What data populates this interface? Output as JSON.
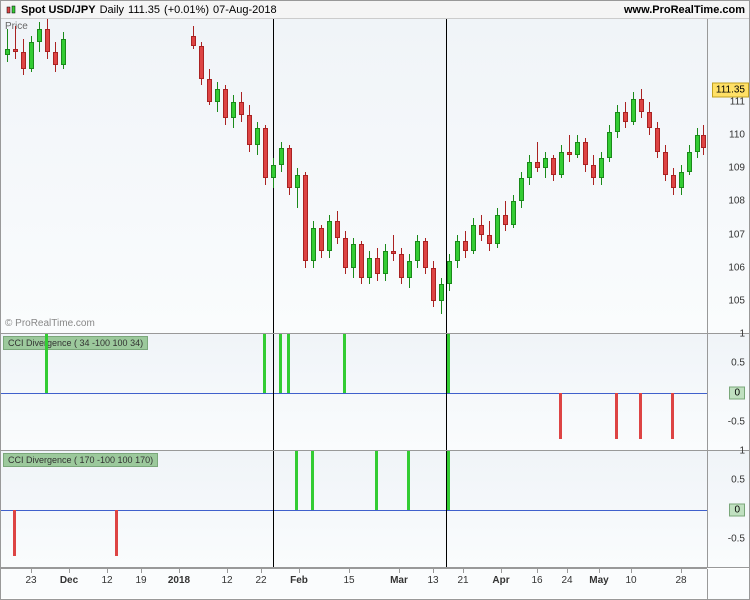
{
  "header": {
    "symbol": "Spot USD/JPY",
    "timeframe": "Daily",
    "price": "111.35",
    "change": "(+0.01%)",
    "date": "07-Aug-2018",
    "site": "www.ProRealTime.com"
  },
  "main": {
    "price_label": "Price",
    "watermark": "© ProRealTime.com",
    "ymin": 104,
    "ymax": 113.5,
    "yticks": [
      105,
      106,
      107,
      108,
      109,
      110,
      111
    ],
    "current_price": 111.35,
    "current_badge": "111.35",
    "vlines_x": [
      272,
      445
    ],
    "candles": [
      {
        "x": 4,
        "o": 112.4,
        "h": 113.2,
        "l": 112.2,
        "c": 112.6,
        "dir": "up"
      },
      {
        "x": 12,
        "o": 112.6,
        "h": 113.3,
        "l": 112.3,
        "c": 112.5,
        "dir": "down"
      },
      {
        "x": 20,
        "o": 112.5,
        "h": 112.9,
        "l": 111.8,
        "c": 112.0,
        "dir": "down"
      },
      {
        "x": 28,
        "o": 112.0,
        "h": 113.0,
        "l": 111.9,
        "c": 112.8,
        "dir": "up"
      },
      {
        "x": 36,
        "o": 112.8,
        "h": 113.4,
        "l": 112.5,
        "c": 113.2,
        "dir": "up"
      },
      {
        "x": 44,
        "o": 113.2,
        "h": 113.5,
        "l": 112.3,
        "c": 112.5,
        "dir": "down"
      },
      {
        "x": 52,
        "o": 112.5,
        "h": 112.8,
        "l": 111.9,
        "c": 112.1,
        "dir": "down"
      },
      {
        "x": 60,
        "o": 112.1,
        "h": 113.1,
        "l": 112.0,
        "c": 112.9,
        "dir": "up"
      },
      {
        "x": 190,
        "o": 113.0,
        "h": 113.3,
        "l": 112.6,
        "c": 112.7,
        "dir": "down"
      },
      {
        "x": 198,
        "o": 112.7,
        "h": 112.8,
        "l": 111.5,
        "c": 111.7,
        "dir": "down"
      },
      {
        "x": 206,
        "o": 111.7,
        "h": 112.0,
        "l": 110.9,
        "c": 111.0,
        "dir": "down"
      },
      {
        "x": 214,
        "o": 111.0,
        "h": 111.6,
        "l": 110.7,
        "c": 111.4,
        "dir": "up"
      },
      {
        "x": 222,
        "o": 111.4,
        "h": 111.5,
        "l": 110.3,
        "c": 110.5,
        "dir": "down"
      },
      {
        "x": 230,
        "o": 110.5,
        "h": 111.2,
        "l": 110.2,
        "c": 111.0,
        "dir": "up"
      },
      {
        "x": 238,
        "o": 111.0,
        "h": 111.3,
        "l": 110.4,
        "c": 110.6,
        "dir": "down"
      },
      {
        "x": 246,
        "o": 110.6,
        "h": 110.9,
        "l": 109.5,
        "c": 109.7,
        "dir": "down"
      },
      {
        "x": 254,
        "o": 109.7,
        "h": 110.4,
        "l": 109.4,
        "c": 110.2,
        "dir": "up"
      },
      {
        "x": 262,
        "o": 110.2,
        "h": 110.3,
        "l": 108.5,
        "c": 108.7,
        "dir": "down"
      },
      {
        "x": 270,
        "o": 108.7,
        "h": 109.3,
        "l": 108.4,
        "c": 109.1,
        "dir": "up"
      },
      {
        "x": 278,
        "o": 109.1,
        "h": 109.8,
        "l": 108.9,
        "c": 109.6,
        "dir": "up"
      },
      {
        "x": 286,
        "o": 109.6,
        "h": 109.7,
        "l": 108.2,
        "c": 108.4,
        "dir": "down"
      },
      {
        "x": 294,
        "o": 108.4,
        "h": 109.0,
        "l": 107.8,
        "c": 108.8,
        "dir": "up"
      },
      {
        "x": 302,
        "o": 108.8,
        "h": 108.9,
        "l": 106.0,
        "c": 106.2,
        "dir": "down"
      },
      {
        "x": 310,
        "o": 106.2,
        "h": 107.4,
        "l": 106.0,
        "c": 107.2,
        "dir": "up"
      },
      {
        "x": 318,
        "o": 107.2,
        "h": 107.3,
        "l": 106.3,
        "c": 106.5,
        "dir": "down"
      },
      {
        "x": 326,
        "o": 106.5,
        "h": 107.6,
        "l": 106.3,
        "c": 107.4,
        "dir": "up"
      },
      {
        "x": 334,
        "o": 107.4,
        "h": 107.7,
        "l": 106.7,
        "c": 106.9,
        "dir": "down"
      },
      {
        "x": 342,
        "o": 106.9,
        "h": 107.1,
        "l": 105.8,
        "c": 106.0,
        "dir": "down"
      },
      {
        "x": 350,
        "o": 106.0,
        "h": 106.9,
        "l": 105.7,
        "c": 106.7,
        "dir": "up"
      },
      {
        "x": 358,
        "o": 106.7,
        "h": 106.8,
        "l": 105.5,
        "c": 105.7,
        "dir": "down"
      },
      {
        "x": 366,
        "o": 105.7,
        "h": 106.5,
        "l": 105.5,
        "c": 106.3,
        "dir": "up"
      },
      {
        "x": 374,
        "o": 106.3,
        "h": 106.6,
        "l": 105.6,
        "c": 105.8,
        "dir": "down"
      },
      {
        "x": 382,
        "o": 105.8,
        "h": 106.7,
        "l": 105.6,
        "c": 106.5,
        "dir": "up"
      },
      {
        "x": 390,
        "o": 106.5,
        "h": 107.0,
        "l": 106.2,
        "c": 106.4,
        "dir": "down"
      },
      {
        "x": 398,
        "o": 106.4,
        "h": 106.6,
        "l": 105.5,
        "c": 105.7,
        "dir": "down"
      },
      {
        "x": 406,
        "o": 105.7,
        "h": 106.4,
        "l": 105.4,
        "c": 106.2,
        "dir": "up"
      },
      {
        "x": 414,
        "o": 106.2,
        "h": 107.0,
        "l": 106.0,
        "c": 106.8,
        "dir": "up"
      },
      {
        "x": 422,
        "o": 106.8,
        "h": 106.9,
        "l": 105.8,
        "c": 106.0,
        "dir": "down"
      },
      {
        "x": 430,
        "o": 106.0,
        "h": 106.2,
        "l": 104.8,
        "c": 105.0,
        "dir": "down"
      },
      {
        "x": 438,
        "o": 105.0,
        "h": 105.7,
        "l": 104.6,
        "c": 105.5,
        "dir": "up"
      },
      {
        "x": 446,
        "o": 105.5,
        "h": 106.4,
        "l": 105.3,
        "c": 106.2,
        "dir": "up"
      },
      {
        "x": 454,
        "o": 106.2,
        "h": 107.0,
        "l": 106.0,
        "c": 106.8,
        "dir": "up"
      },
      {
        "x": 462,
        "o": 106.8,
        "h": 107.1,
        "l": 106.3,
        "c": 106.5,
        "dir": "down"
      },
      {
        "x": 470,
        "o": 106.5,
        "h": 107.5,
        "l": 106.4,
        "c": 107.3,
        "dir": "up"
      },
      {
        "x": 478,
        "o": 107.3,
        "h": 107.6,
        "l": 106.8,
        "c": 107.0,
        "dir": "down"
      },
      {
        "x": 486,
        "o": 107.0,
        "h": 107.4,
        "l": 106.5,
        "c": 106.7,
        "dir": "down"
      },
      {
        "x": 494,
        "o": 106.7,
        "h": 107.8,
        "l": 106.6,
        "c": 107.6,
        "dir": "up"
      },
      {
        "x": 502,
        "o": 107.6,
        "h": 108.0,
        "l": 107.1,
        "c": 107.3,
        "dir": "down"
      },
      {
        "x": 510,
        "o": 107.3,
        "h": 108.2,
        "l": 107.2,
        "c": 108.0,
        "dir": "up"
      },
      {
        "x": 518,
        "o": 108.0,
        "h": 108.9,
        "l": 107.8,
        "c": 108.7,
        "dir": "up"
      },
      {
        "x": 526,
        "o": 108.7,
        "h": 109.4,
        "l": 108.5,
        "c": 109.2,
        "dir": "up"
      },
      {
        "x": 534,
        "o": 109.2,
        "h": 109.8,
        "l": 108.9,
        "c": 109.0,
        "dir": "down"
      },
      {
        "x": 542,
        "o": 109.0,
        "h": 109.5,
        "l": 108.7,
        "c": 109.3,
        "dir": "up"
      },
      {
        "x": 550,
        "o": 109.3,
        "h": 109.4,
        "l": 108.6,
        "c": 108.8,
        "dir": "down"
      },
      {
        "x": 558,
        "o": 108.8,
        "h": 109.7,
        "l": 108.7,
        "c": 109.5,
        "dir": "up"
      },
      {
        "x": 566,
        "o": 109.5,
        "h": 110.0,
        "l": 109.2,
        "c": 109.4,
        "dir": "down"
      },
      {
        "x": 574,
        "o": 109.4,
        "h": 110.0,
        "l": 109.3,
        "c": 109.8,
        "dir": "up"
      },
      {
        "x": 582,
        "o": 109.8,
        "h": 109.9,
        "l": 108.9,
        "c": 109.1,
        "dir": "down"
      },
      {
        "x": 590,
        "o": 109.1,
        "h": 109.4,
        "l": 108.5,
        "c": 108.7,
        "dir": "down"
      },
      {
        "x": 598,
        "o": 108.7,
        "h": 109.5,
        "l": 108.5,
        "c": 109.3,
        "dir": "up"
      },
      {
        "x": 606,
        "o": 109.3,
        "h": 110.3,
        "l": 109.2,
        "c": 110.1,
        "dir": "up"
      },
      {
        "x": 614,
        "o": 110.1,
        "h": 110.9,
        "l": 109.9,
        "c": 110.7,
        "dir": "up"
      },
      {
        "x": 622,
        "o": 110.7,
        "h": 111.0,
        "l": 110.2,
        "c": 110.4,
        "dir": "down"
      },
      {
        "x": 630,
        "o": 110.4,
        "h": 111.3,
        "l": 110.3,
        "c": 111.1,
        "dir": "up"
      },
      {
        "x": 638,
        "o": 111.1,
        "h": 111.4,
        "l": 110.5,
        "c": 110.7,
        "dir": "down"
      },
      {
        "x": 646,
        "o": 110.7,
        "h": 111.0,
        "l": 110.0,
        "c": 110.2,
        "dir": "down"
      },
      {
        "x": 654,
        "o": 110.2,
        "h": 110.4,
        "l": 109.3,
        "c": 109.5,
        "dir": "down"
      },
      {
        "x": 662,
        "o": 109.5,
        "h": 109.7,
        "l": 108.6,
        "c": 108.8,
        "dir": "down"
      },
      {
        "x": 670,
        "o": 108.8,
        "h": 109.0,
        "l": 108.2,
        "c": 108.4,
        "dir": "down"
      },
      {
        "x": 678,
        "o": 108.4,
        "h": 109.1,
        "l": 108.2,
        "c": 108.9,
        "dir": "up"
      },
      {
        "x": 686,
        "o": 108.9,
        "h": 109.7,
        "l": 108.8,
        "c": 109.5,
        "dir": "up"
      },
      {
        "x": 694,
        "o": 109.5,
        "h": 110.2,
        "l": 109.3,
        "c": 110.0,
        "dir": "up"
      },
      {
        "x": 700,
        "o": 110.0,
        "h": 110.3,
        "l": 109.4,
        "c": 109.6,
        "dir": "down"
      }
    ]
  },
  "indicator1": {
    "label": "CCI Divergence ( 34 -100 100 34)",
    "ymin": -1,
    "ymax": 1,
    "yticks": [
      -0.5,
      0,
      0.5,
      1
    ],
    "zero_badge": "0",
    "bars": [
      {
        "x": 44,
        "val": 1,
        "dir": "up"
      },
      {
        "x": 262,
        "val": 1,
        "dir": "up"
      },
      {
        "x": 278,
        "val": 1,
        "dir": "up"
      },
      {
        "x": 286,
        "val": 1,
        "dir": "up"
      },
      {
        "x": 342,
        "val": 1,
        "dir": "up"
      },
      {
        "x": 446,
        "val": 1,
        "dir": "up"
      },
      {
        "x": 558,
        "val": -0.8,
        "dir": "down"
      },
      {
        "x": 614,
        "val": -0.8,
        "dir": "down"
      },
      {
        "x": 638,
        "val": -0.8,
        "dir": "down"
      },
      {
        "x": 670,
        "val": -0.8,
        "dir": "down"
      }
    ]
  },
  "indicator2": {
    "label": "CCI Divergence ( 170 -100 100 170)",
    "ymin": -1,
    "ymax": 1,
    "yticks": [
      -0.5,
      0,
      0.5,
      1
    ],
    "zero_badge": "0",
    "bars": [
      {
        "x": 12,
        "val": -0.8,
        "dir": "down"
      },
      {
        "x": 114,
        "val": -0.8,
        "dir": "down"
      },
      {
        "x": 294,
        "val": 1,
        "dir": "up"
      },
      {
        "x": 310,
        "val": 1,
        "dir": "up"
      },
      {
        "x": 374,
        "val": 1,
        "dir": "up"
      },
      {
        "x": 406,
        "val": 1,
        "dir": "up"
      },
      {
        "x": 446,
        "val": 1,
        "dir": "up"
      }
    ]
  },
  "xaxis": {
    "ticks": [
      {
        "x": 30,
        "label": "23",
        "bold": false
      },
      {
        "x": 68,
        "label": "Dec",
        "bold": true
      },
      {
        "x": 106,
        "label": "12",
        "bold": false
      },
      {
        "x": 140,
        "label": "19",
        "bold": false
      },
      {
        "x": 178,
        "label": "2018",
        "bold": true
      },
      {
        "x": 226,
        "label": "12",
        "bold": false
      },
      {
        "x": 260,
        "label": "22",
        "bold": false
      },
      {
        "x": 298,
        "label": "Feb",
        "bold": true
      },
      {
        "x": 348,
        "label": "15",
        "bold": false
      },
      {
        "x": 398,
        "label": "Mar",
        "bold": true
      },
      {
        "x": 432,
        "label": "13",
        "bold": false
      },
      {
        "x": 462,
        "label": "21",
        "bold": false
      },
      {
        "x": 500,
        "label": "Apr",
        "bold": true
      },
      {
        "x": 536,
        "label": "16",
        "bold": false
      },
      {
        "x": 566,
        "label": "24",
        "bold": false
      },
      {
        "x": 598,
        "label": "May",
        "bold": true
      },
      {
        "x": 630,
        "label": "10",
        "bold": false
      },
      {
        "x": 680,
        "label": "28",
        "bold": false
      }
    ]
  },
  "colors": {
    "up": "#33cc33",
    "down": "#dd4444",
    "badge": "#ffe066",
    "zero_line": "#4060cc",
    "grid_bg_top": "#f0f4f8",
    "grid_bg_bot": "#fafcfd"
  }
}
